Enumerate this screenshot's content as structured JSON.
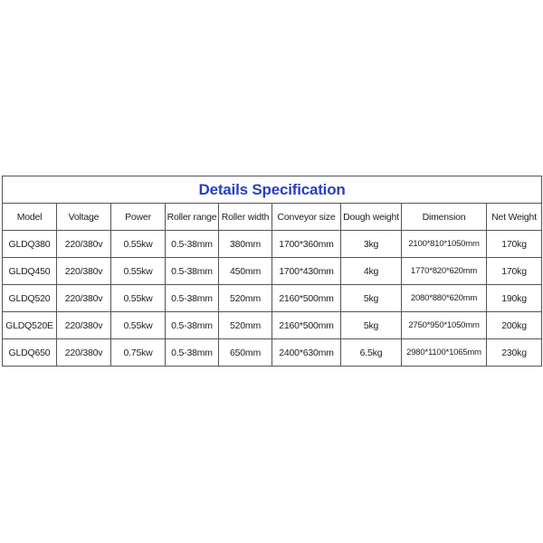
{
  "title": "Details Specification",
  "colors": {
    "title": "#2a3fbf",
    "border": "#555555"
  },
  "headers": [
    "Model",
    "Voltage",
    "Power",
    "Roller range",
    "Roller width",
    "Conveyor size",
    "Dough weight",
    "Dimension",
    "Net Weight"
  ],
  "rows": [
    [
      "GLDQ380",
      "220/380v",
      "0.55kw",
      "0.5-38mm",
      "380mm",
      "1700*360mm",
      "3kg",
      "2100*810*1050mm",
      "170kg"
    ],
    [
      "GLDQ450",
      "220/380v",
      "0.55kw",
      "0.5-38mm",
      "450mm",
      "1700*430mm",
      "4kg",
      "1770*820*620mm",
      "170kg"
    ],
    [
      "GLDQ520",
      "220/380v",
      "0.55kw",
      "0.5-38mm",
      "520mm",
      "2160*500mm",
      "5kg",
      "2080*880*620mm",
      "190kg"
    ],
    [
      "GLDQ520E",
      "220/380v",
      "0.55kw",
      "0.5-38mm",
      "520mm",
      "2160*500mm",
      "5kg",
      "2750*950*1050mm",
      "200kg"
    ],
    [
      "GLDQ650",
      "220/380v",
      "0.75kw",
      "0.5-38mm",
      "650mm",
      "2400*630mm",
      "6.5kg",
      "2980*1100*1065mm",
      "230kg"
    ]
  ]
}
